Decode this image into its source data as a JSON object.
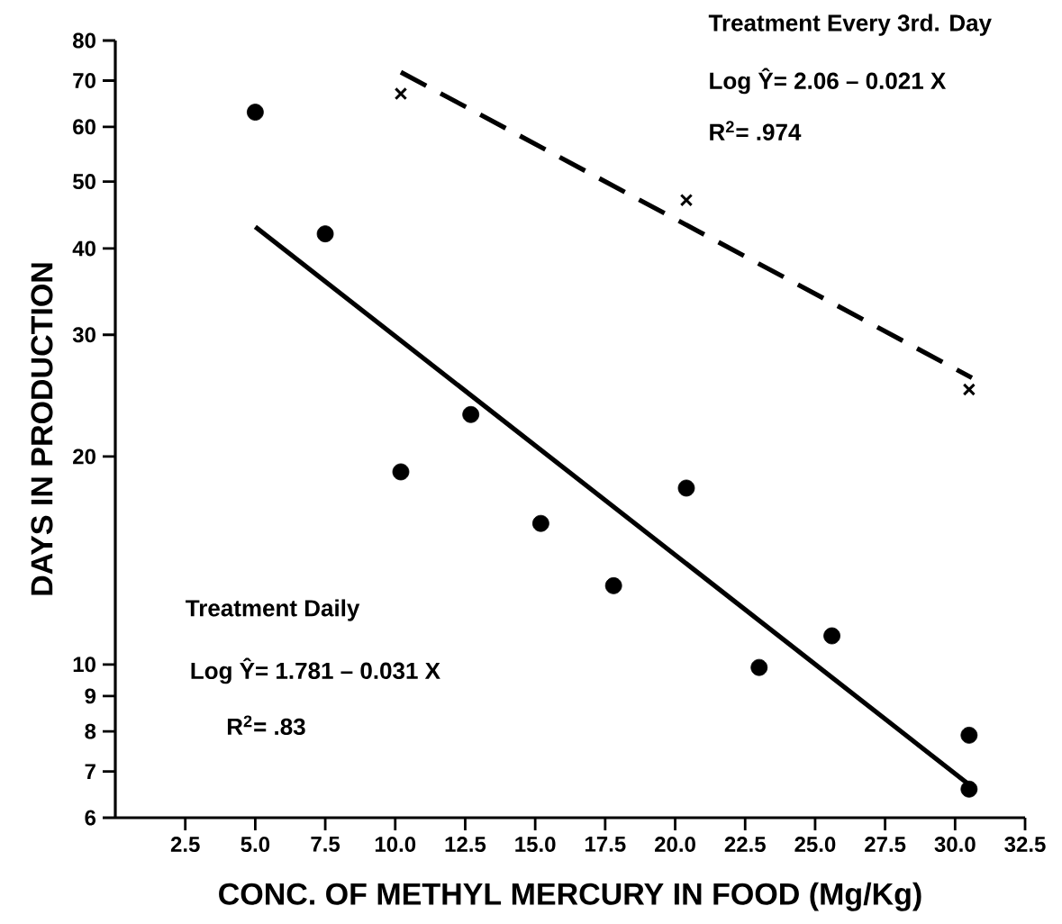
{
  "chart_data": {
    "type": "scatter",
    "xlabel": "CONC. OF METHYL MERCURY IN FOOD (Mg/Kg)",
    "ylabel": "DAYS IN PRODUCTION",
    "log": "y",
    "grid": false,
    "xlim": [
      0,
      32.5
    ],
    "xticks": [
      {
        "value": 2.5,
        "label": "2.5"
      },
      {
        "value": 5,
        "label": "5.0"
      },
      {
        "value": 7.5,
        "label": "7.5"
      },
      {
        "value": 10,
        "label": "10.0"
      },
      {
        "value": 12.5,
        "label": "12.5"
      },
      {
        "value": 15,
        "label": "15.0"
      },
      {
        "value": 17.5,
        "label": "17.5"
      },
      {
        "value": 20,
        "label": "20.0"
      },
      {
        "value": 22.5,
        "label": "22.5"
      },
      {
        "value": 25,
        "label": "25.0"
      },
      {
        "value": 27.5,
        "label": "27.5"
      },
      {
        "value": 30,
        "label": "30.0"
      },
      {
        "value": 32.5,
        "label": "32.5"
      }
    ],
    "ylim": [
      6,
      80
    ],
    "yticks": [
      6,
      7,
      8,
      9,
      10,
      20,
      30,
      40,
      50,
      60,
      70,
      80
    ],
    "series": [
      {
        "marker": "circle",
        "color": "#000000",
        "x": [
          5.0,
          7.5,
          10.2,
          12.7,
          15.2,
          17.8,
          20.4,
          23.0,
          25.6,
          30.5,
          30.5
        ],
        "values": [
          63,
          42,
          19,
          23,
          16,
          13,
          18,
          9.9,
          11,
          7.9,
          6.6
        ]
      },
      {
        "marker": "cross",
        "color": "#000000",
        "x": [
          10.2,
          20.4,
          30.5
        ],
        "values": [
          67,
          47,
          25
        ]
      },
      {
        "type": "line",
        "marker": "none",
        "line_style": "solid",
        "color": "#000000",
        "x": [
          5.0,
          30.5
        ],
        "values": [
          43,
          6.7
        ]
      },
      {
        "type": "line",
        "marker": "none",
        "line_style": "dashed",
        "color": "#000000",
        "x": [
          10.2,
          30.6
        ],
        "values": [
          72,
          26
        ]
      }
    ],
    "annotations": [
      "Treatment Every 3rd. Day",
      "Log Ŷ= 2.06 – 0.021 X",
      "R$^{2}$= .974",
      "Treatment Daily",
      "Log Ŷ= 1.781 – 0.031 X",
      "R$^{2}$= .83"
    ]
  }
}
